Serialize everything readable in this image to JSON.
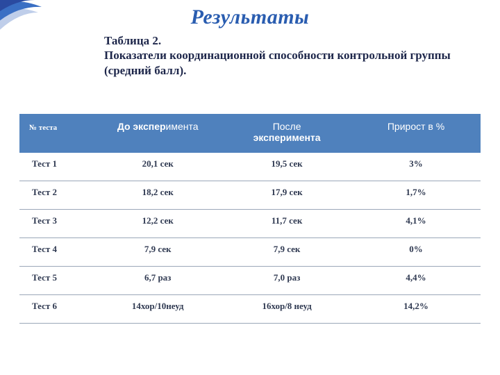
{
  "title": "Результаты",
  "caption_line1": "Таблица 2.",
  "caption_line2": "Показатели координационной способности контрольной группы (средний балл).",
  "swoosh": {
    "outer": "#3a6fc4",
    "inner": "#2a4aa0",
    "shadow": "#8aa6d8"
  },
  "table": {
    "header_bg": "#4f81bd",
    "header_fg": "#ffffff",
    "grid_color": "#9aa7b8",
    "cell_text_color": "#303a52",
    "columns": [
      {
        "key": "num",
        "label_plain": "№ теста"
      },
      {
        "key": "before",
        "label_accent": "До экспер",
        "label_rest": "имента"
      },
      {
        "key": "after",
        "label_top": "После",
        "label_accent_below": "эксперимента"
      },
      {
        "key": "gain",
        "label_plain": "Прирост в %"
      }
    ],
    "rows": [
      {
        "num": "Тест 1",
        "before": "20,1 сек",
        "after": "19,5 сек",
        "gain": "3%"
      },
      {
        "num": "Тест 2",
        "before": "18,2 сек",
        "after": "17,9 сек",
        "gain": "1,7%"
      },
      {
        "num": "Тест 3",
        "before": "12,2 сек",
        "after": "11,7 сек",
        "gain": "4,1%"
      },
      {
        "num": "Тест 4",
        "before": "7,9 сек",
        "after": "7,9 сек",
        "gain": "0%"
      },
      {
        "num": "Тест 5",
        "before": "6,7 раз",
        "after": "7,0 раз",
        "gain": "4,4%"
      },
      {
        "num": "Тест 6",
        "before": "14хор/10неуд",
        "after": "16хор/8 неуд",
        "gain": "14,2%"
      }
    ]
  }
}
